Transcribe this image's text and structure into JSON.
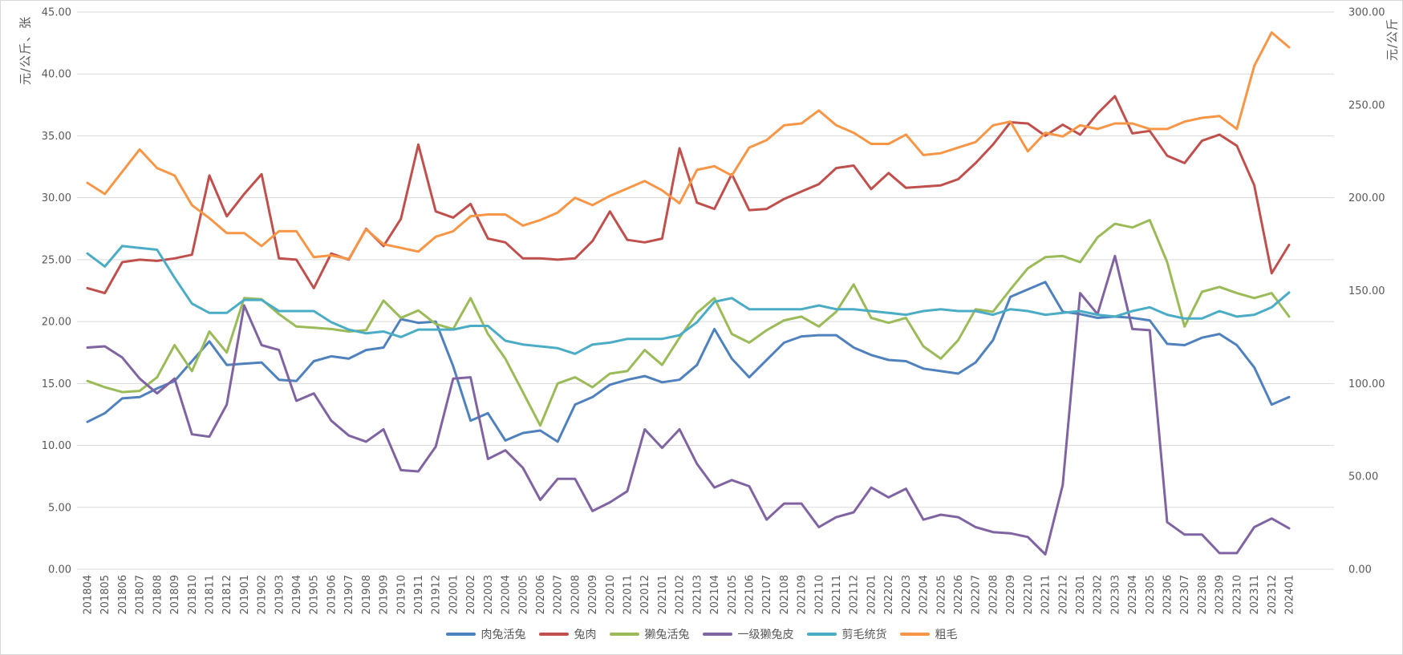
{
  "chart_data": {
    "type": "line",
    "title": "",
    "grid": true,
    "legend_position": "bottom",
    "categories": [
      "201804",
      "201805",
      "201806",
      "201807",
      "201808",
      "201809",
      "201810",
      "201811",
      "201812",
      "201901",
      "201902",
      "201903",
      "201904",
      "201905",
      "201906",
      "201907",
      "201908",
      "201909",
      "201910",
      "201911",
      "201912",
      "202001",
      "202002",
      "202003",
      "202004",
      "202005",
      "202006",
      "202007",
      "202008",
      "202009",
      "202010",
      "202011",
      "202012",
      "202101",
      "202102",
      "202103",
      "202104",
      "202105",
      "202106",
      "202107",
      "202108",
      "202109",
      "202110",
      "202111",
      "202112",
      "202201",
      "202202",
      "202203",
      "202204",
      "202205",
      "202206",
      "202207",
      "202208",
      "202209",
      "202210",
      "202211",
      "202212",
      "202301",
      "202302",
      "202303",
      "202304",
      "202305",
      "202306",
      "202307",
      "202308",
      "202309",
      "202310",
      "202311",
      "202312",
      "202401"
    ],
    "left_axis": {
      "title": "元/公斤、张",
      "min": 0,
      "max": 45,
      "step": 5,
      "ticks": [
        "0.00",
        "5.00",
        "10.00",
        "15.00",
        "20.00",
        "25.00",
        "30.00",
        "35.00",
        "40.00",
        "45.00"
      ]
    },
    "right_axis": {
      "title": "元/公斤",
      "min": 0,
      "max": 300,
      "step": 50,
      "ticks": [
        "0.00",
        "50.00",
        "100.00",
        "150.00",
        "200.00",
        "250.00",
        "300.00"
      ]
    },
    "series": [
      {
        "name": "肉兔活兔",
        "axis": "left",
        "color": "#4F81BD",
        "values": [
          11.9,
          12.6,
          13.8,
          13.9,
          14.6,
          15.2,
          16.8,
          18.4,
          16.5,
          16.6,
          16.7,
          15.3,
          15.2,
          16.8,
          17.2,
          17.0,
          17.7,
          17.9,
          20.2,
          19.9,
          20.0,
          16.4,
          12.0,
          12.6,
          10.4,
          11.0,
          11.2,
          10.3,
          13.3,
          13.9,
          14.9,
          15.3,
          15.6,
          15.1,
          15.3,
          16.5,
          19.4,
          17.0,
          15.5,
          16.9,
          18.3,
          18.8,
          18.9,
          18.9,
          17.9,
          17.3,
          16.9,
          16.8,
          16.2,
          16.0,
          15.8,
          16.7,
          18.5,
          22.0,
          22.6,
          23.2,
          20.8,
          20.6,
          20.3,
          20.4,
          20.3,
          20.1,
          18.2,
          18.1,
          18.7,
          19.0,
          18.1,
          16.3,
          13.3,
          13.9
        ]
      },
      {
        "name": "兔肉",
        "axis": "left",
        "color": "#C0504D",
        "values": [
          22.7,
          22.3,
          24.8,
          25.0,
          24.9,
          25.1,
          25.4,
          31.8,
          28.5,
          30.3,
          31.9,
          25.1,
          25.0,
          22.7,
          25.5,
          25.0,
          27.5,
          26.1,
          28.3,
          34.3,
          28.9,
          28.4,
          29.5,
          26.7,
          26.4,
          25.1,
          25.1,
          25.0,
          25.1,
          26.5,
          28.9,
          26.6,
          26.4,
          26.7,
          34.0,
          29.6,
          29.1,
          31.9,
          29.0,
          29.1,
          29.9,
          30.5,
          31.1,
          32.4,
          32.6,
          30.7,
          32.0,
          30.8,
          30.9,
          31.0,
          31.5,
          32.8,
          34.3,
          36.1,
          36.0,
          35.0,
          35.9,
          35.1,
          36.8,
          38.2,
          35.2,
          35.4,
          33.4,
          32.8,
          34.6,
          35.1,
          34.2,
          31.0,
          23.9,
          26.2
        ]
      },
      {
        "name": "獭兔活兔",
        "axis": "left",
        "color": "#9BBB59",
        "values": [
          15.2,
          14.7,
          14.3,
          14.4,
          15.5,
          18.1,
          16.0,
          19.2,
          17.5,
          21.9,
          21.8,
          20.6,
          19.6,
          19.5,
          19.4,
          19.2,
          19.3,
          21.7,
          20.3,
          20.9,
          19.8,
          19.4,
          21.9,
          19.0,
          17.0,
          14.3,
          11.6,
          15.0,
          15.5,
          14.7,
          15.8,
          16.0,
          17.7,
          16.5,
          18.7,
          20.7,
          21.9,
          19.0,
          18.3,
          19.3,
          20.1,
          20.4,
          19.6,
          20.8,
          23.0,
          20.3,
          19.9,
          20.3,
          18.0,
          17.0,
          18.5,
          21.0,
          20.8,
          22.6,
          24.3,
          25.2,
          25.3,
          24.8,
          26.8,
          27.9,
          27.6,
          28.2,
          24.8,
          19.6,
          22.4,
          22.8,
          22.3,
          21.9,
          22.3,
          20.4
        ]
      },
      {
        "name": "一级獭兔皮",
        "axis": "left",
        "color": "#8064A2",
        "values": [
          17.9,
          18.0,
          17.1,
          15.4,
          14.2,
          15.4,
          10.9,
          10.7,
          13.3,
          21.3,
          18.1,
          17.7,
          13.6,
          14.2,
          12.0,
          10.8,
          10.3,
          11.3,
          8.0,
          7.9,
          9.9,
          15.4,
          15.5,
          8.9,
          9.6,
          8.2,
          5.6,
          7.3,
          7.3,
          4.7,
          5.4,
          6.3,
          11.3,
          9.8,
          11.3,
          8.5,
          6.6,
          7.2,
          6.7,
          4.0,
          5.3,
          5.3,
          3.4,
          4.2,
          4.6,
          6.6,
          5.8,
          6.5,
          4.0,
          4.4,
          4.2,
          3.4,
          3.0,
          2.9,
          2.6,
          1.2,
          6.8,
          22.3,
          20.6,
          25.3,
          19.4,
          19.3,
          3.8,
          2.8,
          2.8,
          1.3,
          1.3,
          3.4,
          4.1,
          3.3
        ]
      },
      {
        "name": "剪毛统货",
        "axis": "right",
        "color": "#4BACC6",
        "values": [
          170,
          163,
          174,
          173,
          172,
          157,
          143,
          138,
          138,
          145,
          145,
          139,
          139,
          139,
          133,
          129,
          127,
          128,
          125,
          129,
          129,
          129,
          131,
          131,
          123,
          121,
          120,
          119,
          116,
          121,
          122,
          124,
          124,
          124,
          126,
          133,
          144,
          146,
          140,
          140,
          140,
          140,
          142,
          140,
          140,
          139,
          138,
          137,
          139,
          140,
          139,
          139,
          137,
          140,
          139,
          137,
          138,
          139,
          137,
          136,
          139,
          141,
          137,
          135,
          135,
          139,
          136,
          137,
          141,
          149
        ]
      },
      {
        "name": "粗毛",
        "axis": "right",
        "color": "#F79646",
        "values": [
          208,
          202,
          214,
          226,
          216,
          212,
          196,
          189,
          181,
          181,
          174,
          182,
          182,
          168,
          169,
          167,
          183,
          175,
          173,
          171,
          179,
          182,
          190,
          191,
          191,
          185,
          188,
          192,
          200,
          196,
          201,
          205,
          209,
          204,
          197,
          215,
          217,
          212,
          227,
          231,
          239,
          240,
          247,
          239,
          235,
          229,
          229,
          234,
          223,
          224,
          227,
          230,
          239,
          241,
          225,
          235,
          233,
          239,
          237,
          240,
          240,
          237,
          237,
          241,
          243,
          244,
          237,
          271,
          289,
          281
        ]
      }
    ],
    "style": {
      "grid_color": "#D9D9D9",
      "tick_color": "#595959",
      "background": "#FFFFFF",
      "line_width": 3
    }
  }
}
